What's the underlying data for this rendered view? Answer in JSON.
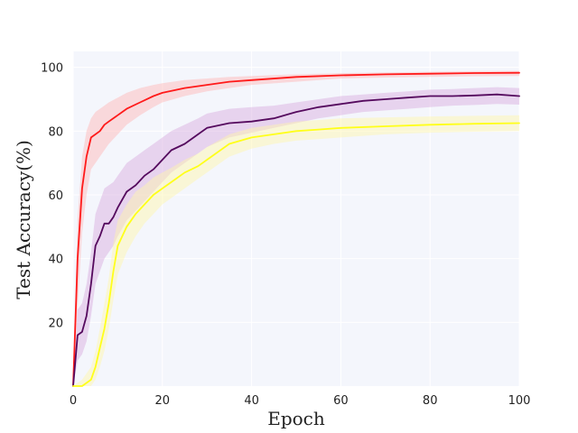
{
  "chart_data": {
    "type": "line",
    "title": "",
    "xlabel": "Epoch",
    "ylabel": "Test Accuracy(%)",
    "xlim": [
      0,
      100
    ],
    "ylim": [
      0,
      105
    ],
    "x_ticks": [
      0,
      20,
      40,
      60,
      80,
      100
    ],
    "y_ticks": [
      20,
      40,
      60,
      80,
      100
    ],
    "x_tick_labels": [
      "0",
      "20",
      "40",
      "60",
      "80",
      "100"
    ],
    "y_tick_labels": [
      "20",
      "40",
      "60",
      "80",
      "100"
    ],
    "grid": true,
    "legend": "none",
    "background_color": "#f4f6fc",
    "series": [
      {
        "color": "#ff1a1a",
        "band_color": "#ffb3b3",
        "x": [
          0,
          1,
          2,
          3,
          4,
          5,
          6,
          7,
          8,
          10,
          12,
          15,
          18,
          20,
          25,
          30,
          35,
          40,
          50,
          60,
          70,
          80,
          90,
          100
        ],
        "y": [
          0,
          40,
          62,
          72,
          78,
          79,
          80,
          82,
          83,
          85,
          87,
          89,
          91,
          92,
          93.5,
          94.5,
          95.5,
          96,
          97,
          97.5,
          97.8,
          98,
          98.2,
          98.3
        ],
        "band_lower": [
          0,
          25,
          48,
          60,
          68,
          70,
          72,
          74,
          76,
          79,
          82,
          85,
          87.5,
          89,
          91,
          92.5,
          93.5,
          94.5,
          95.5,
          96.5,
          96.8,
          97,
          97.2,
          97.3
        ],
        "band_upper": [
          0,
          52,
          72,
          80,
          84,
          86,
          87,
          88,
          89,
          90.5,
          92,
          93.5,
          94.5,
          95,
          96,
          96.5,
          97,
          97.3,
          97.8,
          98.2,
          98.4,
          98.6,
          98.8,
          98.9
        ]
      },
      {
        "color": "#550a5e",
        "band_color": "#d7a8dd",
        "x": [
          0,
          1,
          2,
          3,
          4,
          5,
          6,
          7,
          8,
          9,
          10,
          12,
          14,
          16,
          18,
          20,
          22,
          25,
          28,
          30,
          35,
          40,
          45,
          50,
          55,
          60,
          65,
          70,
          75,
          80,
          85,
          90,
          95,
          100
        ],
        "y": [
          0,
          16,
          17,
          22,
          32,
          44,
          47,
          51,
          51,
          53,
          56,
          61,
          63,
          66,
          68,
          71,
          74,
          76,
          79,
          81,
          82.5,
          83,
          84,
          86,
          87.5,
          88.5,
          89.5,
          90,
          90.5,
          91,
          91,
          91.2,
          91.5,
          91
        ],
        "band_lower": [
          0,
          8,
          10,
          14,
          22,
          32,
          36,
          40,
          42,
          44,
          47,
          52,
          55,
          58,
          61,
          64,
          67,
          70,
          73,
          75,
          78,
          79.5,
          81,
          82.5,
          84,
          85,
          86,
          86.5,
          87,
          87.5,
          88,
          88.2,
          88.5,
          88.3
        ],
        "band_upper": [
          0,
          24,
          26,
          32,
          42,
          54,
          58,
          62,
          63,
          64,
          66,
          70,
          72,
          74,
          76,
          78,
          80,
          82,
          84,
          85.5,
          87,
          87.5,
          88,
          89,
          90,
          91,
          91.5,
          92,
          92.5,
          93,
          93.2,
          93.5,
          93.8,
          93.5
        ]
      },
      {
        "color": "#ffff1a",
        "band_color": "#fff6a8",
        "x": [
          0,
          2,
          4,
          5,
          6,
          7,
          8,
          9,
          10,
          12,
          14,
          16,
          18,
          20,
          22,
          25,
          28,
          30,
          35,
          40,
          45,
          50,
          55,
          60,
          70,
          80,
          90,
          100
        ],
        "y": [
          0,
          0,
          2,
          6,
          12,
          18,
          26,
          36,
          44,
          50,
          54,
          57,
          60,
          62,
          64,
          67,
          69,
          71,
          76,
          78,
          79,
          80,
          80.5,
          81,
          81.5,
          82,
          82.3,
          82.5
        ],
        "band_lower": [
          0,
          0,
          0,
          2,
          6,
          11,
          18,
          27,
          35,
          42,
          47,
          51,
          54,
          57,
          59,
          62,
          65,
          67,
          72,
          74.5,
          76,
          77,
          77.5,
          78,
          79,
          79.5,
          79.8,
          80
        ],
        "band_upper": [
          0,
          2,
          6,
          11,
          18,
          26,
          34,
          45,
          52,
          57,
          61,
          63,
          65.5,
          67,
          68.5,
          71,
          73,
          75,
          79,
          81,
          82,
          83,
          83.5,
          84,
          84.3,
          84.6,
          84.8,
          85
        ]
      }
    ]
  }
}
